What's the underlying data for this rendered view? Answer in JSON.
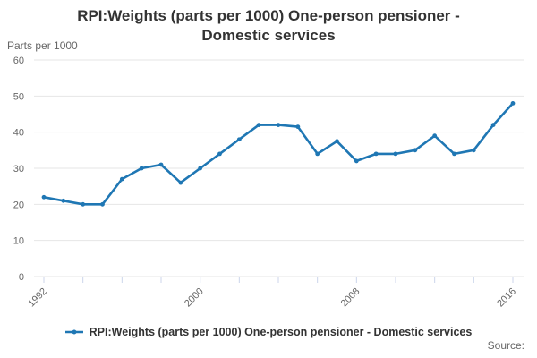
{
  "chart": {
    "title_line1": "RPI:Weights (parts per 1000) One-person pensioner -",
    "title_line2": "Domestic services"
  },
  "footer": {
    "source_label": "Source:"
  },
  "colors": {
    "series_blue": "#1f77b4",
    "grid": "#e6e6e6",
    "axis": "#ccd6eb",
    "tick_label": "#666666",
    "title_text": "#333333"
  },
  "chart_data": {
    "type": "line",
    "title": "RPI:Weights (parts per 1000) One-person pensioner - Domestic services",
    "y_axis_title": "Parts per 1000",
    "x": [
      1992,
      1993,
      1994,
      1995,
      1996,
      1997,
      1998,
      1999,
      2000,
      2001,
      2002,
      2003,
      2004,
      2005,
      2006,
      2007,
      2008,
      2009,
      2010,
      2011,
      2012,
      2013,
      2014,
      2015,
      2016
    ],
    "series": [
      {
        "name": "RPI:Weights (parts per 1000) One-person pensioner - Domestic services",
        "values": [
          22,
          21,
          20,
          20,
          27,
          30,
          31,
          26,
          30,
          34,
          38,
          42,
          42,
          41.5,
          34,
          37.5,
          32,
          34,
          34,
          35,
          39,
          34,
          35,
          42,
          48
        ]
      }
    ],
    "ylim": [
      0,
      60
    ],
    "yticks": [
      0,
      10,
      20,
      30,
      40,
      50,
      60
    ],
    "xticks": [
      1992,
      1994,
      1996,
      1998,
      2000,
      2002,
      2004,
      2006,
      2008,
      2010,
      2012,
      2014,
      2016
    ],
    "xtick_labels": [
      "1992",
      "2000",
      "2008",
      "2016"
    ],
    "xtick_label_rotation": -45,
    "grid": true,
    "legend_position": "bottom",
    "marker": "circle"
  }
}
